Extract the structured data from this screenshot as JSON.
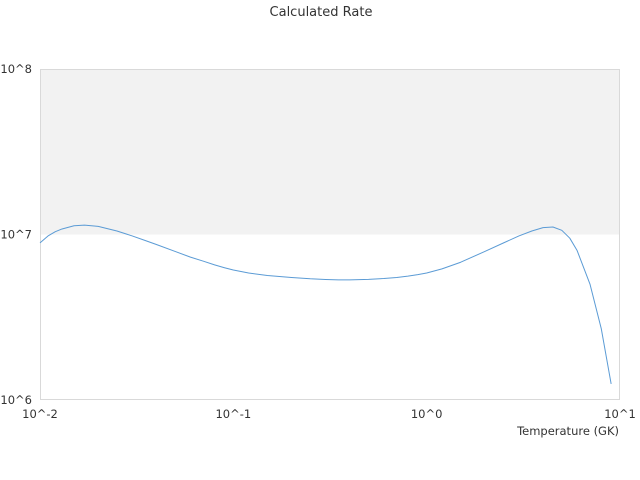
{
  "chart_data": {
    "type": "line",
    "title": "Calculated Rate",
    "xlabel": "Temperature (GK)",
    "ylabel": "",
    "x_scale": "log",
    "y_scale": "log",
    "xlim": [
      0.01,
      10
    ],
    "ylim": [
      1000000,
      100000000
    ],
    "x_tick_labels": [
      "10^-2",
      "10^-1",
      "10^0",
      "10^1"
    ],
    "y_tick_labels": [
      "10^6",
      "10^7",
      "10^8"
    ],
    "grid": false,
    "legend": "none",
    "band": {
      "from": 10000000,
      "to": 100000000,
      "color": "#f2f2f2"
    },
    "line_color": "#5b9bd5",
    "series": [
      {
        "x": [
          0.01,
          0.011,
          0.012,
          0.013,
          0.015,
          0.017,
          0.02,
          0.025,
          0.03,
          0.035,
          0.04,
          0.05,
          0.06,
          0.07,
          0.08,
          0.09,
          0.1,
          0.12,
          0.15,
          0.2,
          0.25,
          0.3,
          0.35,
          0.4,
          0.5,
          0.6,
          0.7,
          0.8,
          0.9,
          1.0,
          1.2,
          1.5,
          2.0,
          2.5,
          3.0,
          3.5,
          4.0,
          4.5,
          5.0,
          5.5,
          6.0,
          7.0,
          8.0,
          9.0
        ],
        "y": [
          8900000,
          9800000,
          10400000,
          10800000,
          11300000,
          11400000,
          11200000,
          10500000,
          9800000,
          9200000,
          8700000,
          7900000,
          7300000,
          6900000,
          6550000,
          6300000,
          6100000,
          5850000,
          5650000,
          5500000,
          5400000,
          5350000,
          5320000,
          5320000,
          5360000,
          5420000,
          5500000,
          5600000,
          5720000,
          5850000,
          6200000,
          6800000,
          7900000,
          8900000,
          9800000,
          10500000,
          11000000,
          11100000,
          10600000,
          9500000,
          8000000,
          5000000,
          2700000,
          1250000
        ]
      }
    ]
  }
}
